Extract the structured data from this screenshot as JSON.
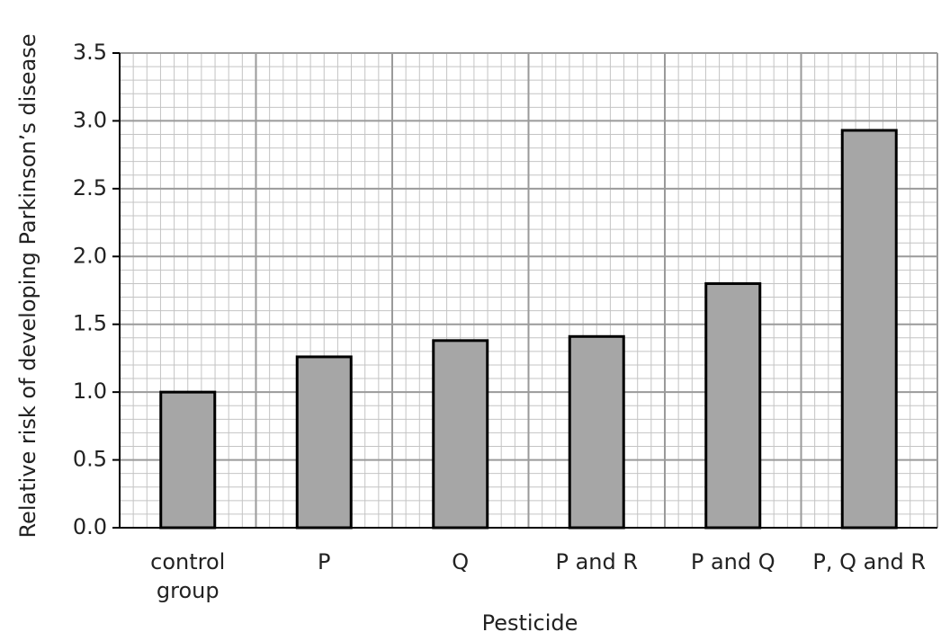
{
  "chart_data": {
    "type": "bar",
    "x_label": "Pesticide",
    "y_label": "Relative risk of developing Parkinson’s disease",
    "categories": [
      "control group",
      "P",
      "Q",
      "P and R",
      "P and Q",
      "P, Q and R"
    ],
    "values": [
      1.0,
      1.26,
      1.38,
      1.41,
      1.8,
      2.93
    ],
    "color": "#a6a6a6",
    "ylim": [
      0,
      3.5
    ],
    "yticks": [
      {
        "value": 0,
        "label": "0.0"
      },
      {
        "value": 0.5,
        "label": "0.5"
      },
      {
        "value": 1,
        "label": "1.0"
      },
      {
        "value": 1.5,
        "label": "1.5"
      },
      {
        "value": 2,
        "label": "2.0"
      },
      {
        "value": 2.5,
        "label": "2.5"
      },
      {
        "value": 3,
        "label": "3.0"
      },
      {
        "value": 3.5,
        "label": "3.5"
      }
    ],
    "grid": true
  }
}
